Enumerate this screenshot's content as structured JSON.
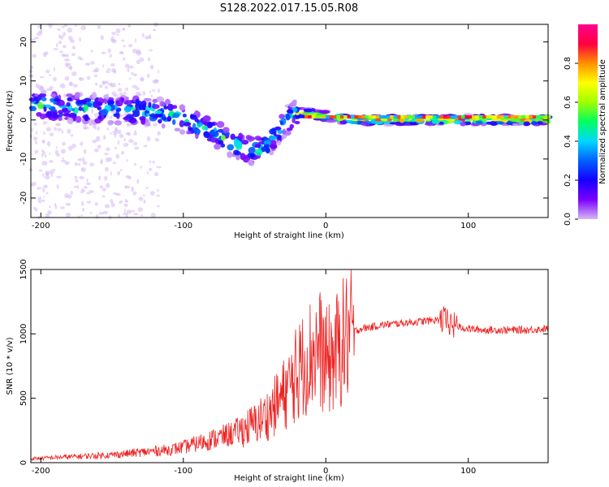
{
  "title": "S128.2022.017.15.05.R08",
  "chart_data": [
    {
      "type": "heatmap",
      "xlabel": "Height of straight line (km)",
      "ylabel": "Frequency (Hz)",
      "xlim": [
        -207,
        156
      ],
      "ylim": [
        -25,
        24.5
      ],
      "xticks": [
        -200,
        -100,
        0,
        100
      ],
      "yticks": [
        -20,
        -10,
        0,
        10,
        20
      ],
      "colorbar": {
        "label": "Normalized spectral amplitude",
        "range": [
          0.0,
          1.0
        ],
        "ticks": [
          "0.0",
          "0.2",
          "0.4",
          "0.6",
          "0.8"
        ],
        "colormap": [
          "#d6b8f5",
          "#7a00ff",
          "#1500ff",
          "#0060ff",
          "#00d8ff",
          "#00ff60",
          "#a0ff00",
          "#ffff00",
          "#ff9000",
          "#ff0040",
          "#ff0090"
        ]
      },
      "ridge": {
        "x": [
          -207,
          -190,
          -170,
          -150,
          -130,
          -110,
          -95,
          -80,
          -65,
          -50,
          -40,
          -30,
          -20,
          -10,
          0,
          20,
          60,
          100,
          156
        ],
        "frequency": [
          4,
          3.5,
          3,
          2.5,
          2.5,
          1.5,
          -0.5,
          -3,
          -6,
          -8,
          -6,
          -1,
          2,
          1.5,
          1,
          0,
          0,
          0,
          0
        ]
      }
    },
    {
      "type": "line",
      "color": "#ee2222",
      "xlabel": "Height of straight line (km)",
      "ylabel": "SNR (10 * v/v)",
      "xlim": [
        -207,
        156
      ],
      "ylim": [
        0,
        1500
      ],
      "xticks": [
        -200,
        -100,
        0,
        100
      ],
      "yticks": [
        0,
        500,
        1000,
        1500
      ],
      "series": [
        {
          "x": [
            -207,
            -190,
            -170,
            -150,
            -130,
            -110,
            -100,
            -90,
            -80,
            -70,
            -60,
            -50,
            -45,
            -40,
            -35,
            -30,
            -25,
            -20,
            -15,
            -10,
            -5,
            0,
            5,
            10,
            15,
            20,
            25,
            30,
            40,
            50,
            60,
            70,
            80,
            85,
            90,
            100,
            110,
            120,
            130,
            140,
            156
          ],
          "values": [
            30,
            40,
            50,
            60,
            80,
            100,
            120,
            150,
            180,
            210,
            250,
            300,
            340,
            380,
            450,
            520,
            600,
            700,
            780,
            850,
            900,
            780,
            820,
            900,
            980,
            1020,
            1040,
            1050,
            1070,
            1080,
            1090,
            1100,
            1110,
            1100,
            1060,
            1040,
            1030,
            1030,
            1030,
            1030,
            1040
          ]
        }
      ]
    }
  ]
}
